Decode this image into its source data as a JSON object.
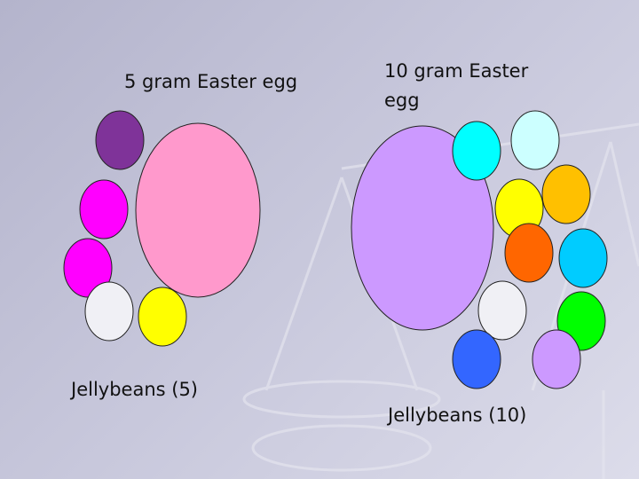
{
  "left": {
    "title": "5 gram Easter egg",
    "caption": "Jellybeans (5)"
  },
  "right": {
    "title": "10 gram Easter egg",
    "caption": "Jellybeans (10)"
  }
}
